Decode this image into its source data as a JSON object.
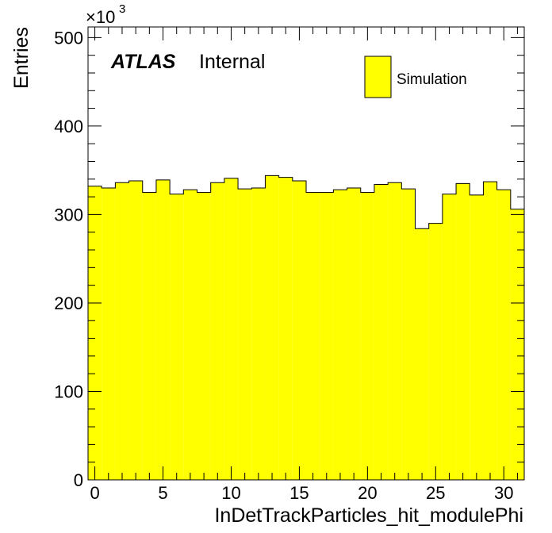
{
  "chart_data": {
    "type": "bar",
    "xlabel": "InDetTrackParticles_hit_modulePhi",
    "ylabel": "Entries",
    "y_multiplier": "×10",
    "y_multiplier_exp": "3",
    "xlim": [
      -0.5,
      31.5
    ],
    "ylim": [
      0,
      512
    ],
    "x_ticks": [
      0,
      5,
      10,
      15,
      20,
      25,
      30
    ],
    "y_ticks": [
      0,
      100,
      200,
      300,
      400,
      500
    ],
    "bin_width": 1,
    "bins": [
      0,
      1,
      2,
      3,
      4,
      5,
      6,
      7,
      8,
      9,
      10,
      11,
      12,
      13,
      14,
      15,
      16,
      17,
      18,
      19,
      20,
      21,
      22,
      23,
      24,
      25,
      26,
      27,
      28,
      29,
      30,
      31
    ],
    "values": [
      332,
      330,
      336,
      338,
      325,
      339,
      323,
      328,
      325,
      336,
      341,
      329,
      330,
      344,
      342,
      338,
      325,
      325,
      328,
      330,
      325,
      334,
      336,
      329,
      284,
      290,
      323,
      335,
      322,
      337,
      328,
      306
    ],
    "fill_color": "#ffff00",
    "line_color": "#000000",
    "legend": {
      "entries": [
        "Simulation"
      ],
      "placement": "top-right"
    },
    "grid": false,
    "annotation": {
      "experiment": "ATLAS",
      "status": "Internal"
    }
  }
}
